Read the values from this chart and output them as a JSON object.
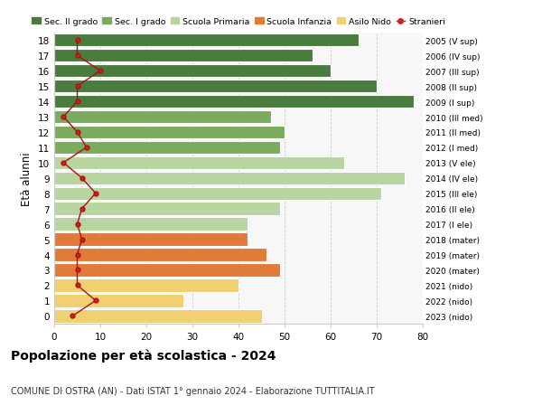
{
  "ages": [
    18,
    17,
    16,
    15,
    14,
    13,
    12,
    11,
    10,
    9,
    8,
    7,
    6,
    5,
    4,
    3,
    2,
    1,
    0
  ],
  "right_labels": [
    "2005 (V sup)",
    "2006 (IV sup)",
    "2007 (III sup)",
    "2008 (II sup)",
    "2009 (I sup)",
    "2010 (III med)",
    "2011 (II med)",
    "2012 (I med)",
    "2013 (V ele)",
    "2014 (IV ele)",
    "2015 (III ele)",
    "2016 (II ele)",
    "2017 (I ele)",
    "2018 (mater)",
    "2019 (mater)",
    "2020 (mater)",
    "2021 (nido)",
    "2022 (nido)",
    "2023 (nido)"
  ],
  "bar_values": [
    66,
    56,
    60,
    70,
    78,
    47,
    50,
    49,
    63,
    76,
    71,
    49,
    42,
    42,
    46,
    49,
    40,
    28,
    45
  ],
  "bar_colors": [
    "#4a7c3f",
    "#4a7c3f",
    "#4a7c3f",
    "#4a7c3f",
    "#4a7c3f",
    "#7aab5e",
    "#7aab5e",
    "#7aab5e",
    "#b8d4a0",
    "#b8d4a0",
    "#b8d4a0",
    "#b8d4a0",
    "#b8d4a0",
    "#e07b39",
    "#e07b39",
    "#e07b39",
    "#f0d070",
    "#f0d070",
    "#f0d070"
  ],
  "stranieri_values": [
    5,
    5,
    10,
    5,
    5,
    2,
    5,
    7,
    2,
    6,
    9,
    6,
    5,
    6,
    5,
    5,
    5,
    9,
    4
  ],
  "legend_items": [
    {
      "label": "Sec. II grado",
      "color": "#4a7c3f"
    },
    {
      "label": "Sec. I grado",
      "color": "#7aab5e"
    },
    {
      "label": "Scuola Primaria",
      "color": "#b8d4a0"
    },
    {
      "label": "Scuola Infanzia",
      "color": "#e07b39"
    },
    {
      "label": "Asilo Nido",
      "color": "#f0d070"
    },
    {
      "label": "Stranieri",
      "color": "#cc2222"
    }
  ],
  "ylabel_left": "Età alunni",
  "title": "Popolazione per età scolastica - 2024",
  "subtitle": "COMUNE DI OSTRA (AN) - Dati ISTAT 1° gennaio 2024 - Elaborazione TUTTITALIA.IT",
  "xlim": [
    0,
    80
  ],
  "xticks": [
    0,
    10,
    20,
    30,
    40,
    50,
    60,
    70,
    80
  ],
  "bg_color": "#ffffff",
  "grid_color": "#cccccc",
  "fig_width": 6.0,
  "fig_height": 4.6,
  "dpi": 100
}
